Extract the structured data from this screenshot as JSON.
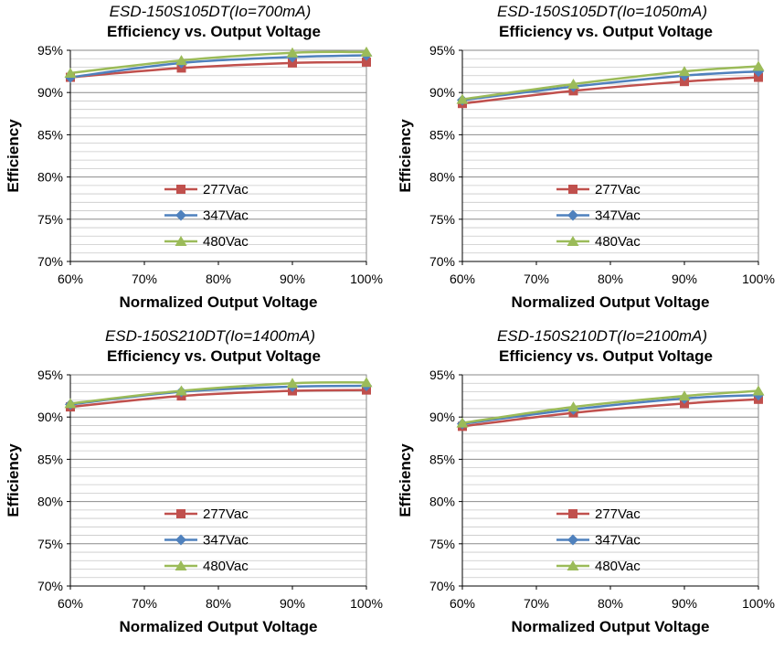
{
  "chart_data": [
    {
      "type": "line",
      "title": "ESD-150S105DT(Io=700mA)",
      "subtitle": "Efficiency vs. Output Voltage",
      "xlabel": "Normalized Output Voltage",
      "ylabel": "Efficiency",
      "x": [
        60,
        75,
        90,
        100
      ],
      "x_ticks": [
        "60%",
        "70%",
        "80%",
        "90%",
        "100%"
      ],
      "y_ticks": [
        "70%",
        "75%",
        "80%",
        "85%",
        "90%",
        "95%"
      ],
      "xlim": [
        60,
        100
      ],
      "ylim": [
        70,
        95
      ],
      "legend_position": "lower-right",
      "series": [
        {
          "name": "277Vac",
          "color": "#c0504d",
          "marker": "square",
          "values": [
            91.8,
            92.9,
            93.5,
            93.6
          ]
        },
        {
          "name": "347Vac",
          "color": "#4f81bd",
          "marker": "diamond",
          "values": [
            91.8,
            93.5,
            94.2,
            94.4
          ]
        },
        {
          "name": "480Vac",
          "color": "#9bbb59",
          "marker": "triangle",
          "values": [
            92.3,
            93.8,
            94.7,
            94.8
          ]
        }
      ]
    },
    {
      "type": "line",
      "title": "ESD-150S105DT(Io=1050mA)",
      "subtitle": "Efficiency vs. Output Voltage",
      "xlabel": "Normalized Output Voltage",
      "ylabel": "Efficiency",
      "x": [
        60,
        75,
        90,
        100
      ],
      "x_ticks": [
        "60%",
        "70%",
        "80%",
        "90%",
        "100%"
      ],
      "y_ticks": [
        "70%",
        "75%",
        "80%",
        "85%",
        "90%",
        "95%"
      ],
      "xlim": [
        60,
        100
      ],
      "ylim": [
        70,
        95
      ],
      "legend_position": "lower-right",
      "series": [
        {
          "name": "277Vac",
          "color": "#c0504d",
          "marker": "square",
          "values": [
            88.7,
            90.2,
            91.3,
            91.8
          ]
        },
        {
          "name": "347Vac",
          "color": "#4f81bd",
          "marker": "diamond",
          "values": [
            89.1,
            90.7,
            92.0,
            92.5
          ]
        },
        {
          "name": "480Vac",
          "color": "#9bbb59",
          "marker": "triangle",
          "values": [
            89.2,
            91.0,
            92.5,
            93.1
          ]
        }
      ]
    },
    {
      "type": "line",
      "title": "ESD-150S210DT(Io=1400mA)",
      "subtitle": "Efficiency vs. Output Voltage",
      "xlabel": "Normalized Output Voltage",
      "ylabel": "Efficiency",
      "x": [
        60,
        75,
        90,
        100
      ],
      "x_ticks": [
        "60%",
        "70%",
        "80%",
        "90%",
        "100%"
      ],
      "y_ticks": [
        "70%",
        "75%",
        "80%",
        "85%",
        "90%",
        "95%"
      ],
      "xlim": [
        60,
        100
      ],
      "ylim": [
        70,
        95
      ],
      "legend_position": "lower-right",
      "series": [
        {
          "name": "277Vac",
          "color": "#c0504d",
          "marker": "square",
          "values": [
            91.2,
            92.5,
            93.1,
            93.2
          ]
        },
        {
          "name": "347Vac",
          "color": "#4f81bd",
          "marker": "diamond",
          "values": [
            91.5,
            93.0,
            93.6,
            93.7
          ]
        },
        {
          "name": "480Vac",
          "color": "#9bbb59",
          "marker": "triangle",
          "values": [
            91.6,
            93.1,
            94.0,
            94.1
          ]
        }
      ]
    },
    {
      "type": "line",
      "title": "ESD-150S210DT(Io=2100mA)",
      "subtitle": "Efficiency vs. Output Voltage",
      "xlabel": "Normalized Output Voltage",
      "ylabel": "Efficiency",
      "x": [
        60,
        75,
        90,
        100
      ],
      "x_ticks": [
        "60%",
        "70%",
        "80%",
        "90%",
        "100%"
      ],
      "y_ticks": [
        "70%",
        "75%",
        "80%",
        "85%",
        "90%",
        "95%"
      ],
      "xlim": [
        60,
        100
      ],
      "ylim": [
        70,
        95
      ],
      "legend_position": "lower-right",
      "series": [
        {
          "name": "277Vac",
          "color": "#c0504d",
          "marker": "square",
          "values": [
            88.9,
            90.5,
            91.6,
            92.1
          ]
        },
        {
          "name": "347Vac",
          "color": "#4f81bd",
          "marker": "diamond",
          "values": [
            89.2,
            90.9,
            92.2,
            92.6
          ]
        },
        {
          "name": "480Vac",
          "color": "#9bbb59",
          "marker": "triangle",
          "values": [
            89.3,
            91.2,
            92.5,
            93.1
          ]
        }
      ]
    }
  ]
}
